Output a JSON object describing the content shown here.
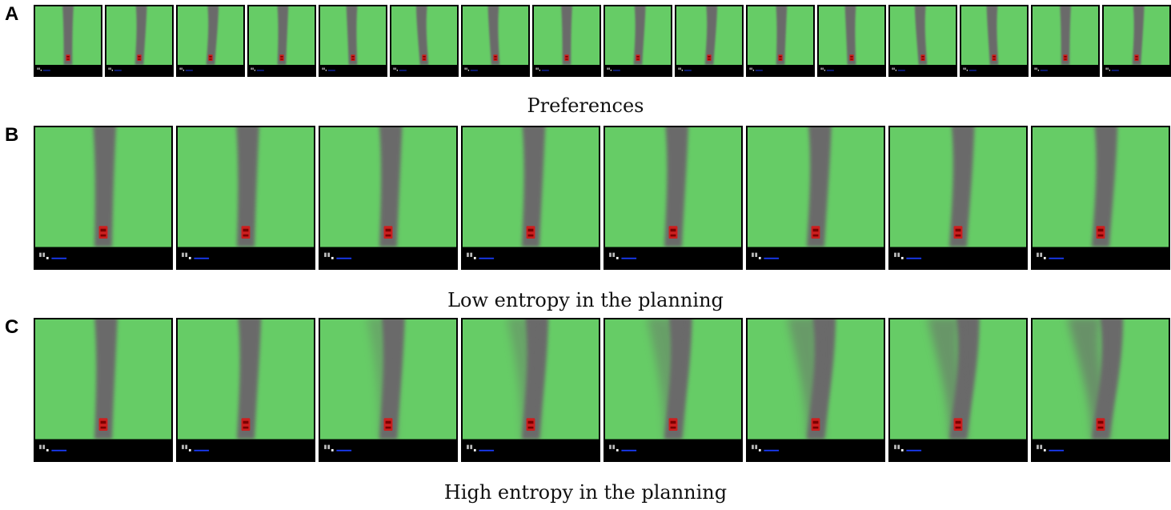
{
  "panels": [
    {
      "letter": "A",
      "caption": "Preferences",
      "frame_count": 16
    },
    {
      "letter": "B",
      "caption": "Low entropy in the planning",
      "frame_count": 8
    },
    {
      "letter": "C",
      "caption": "High entropy in the planning",
      "frame_count": 8
    }
  ],
  "colors": {
    "grass": "#66cc66",
    "road": "#6b6b6b",
    "car": "#cc1f1f",
    "hud": "#000000",
    "speed_bar": "#1a3cff"
  },
  "icons": {
    "car": "red-car-icon",
    "hud_indicator": "hud-indicator-icon"
  }
}
